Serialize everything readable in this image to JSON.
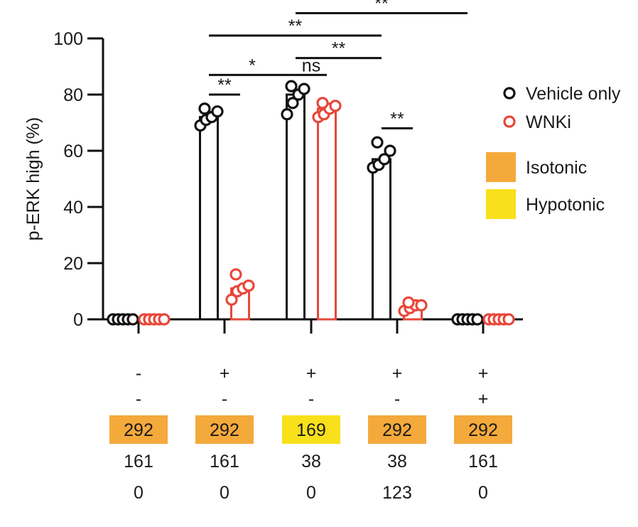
{
  "chart_data": {
    "type": "bar",
    "ylabel": "p-ERK high (%)",
    "ylim": [
      0,
      100
    ],
    "yticks": [
      0,
      20,
      40,
      60,
      80,
      100
    ],
    "groups": [
      "1",
      "2",
      "3",
      "4",
      "5"
    ],
    "series": [
      {
        "name": "Vehicle only",
        "color": "#111111",
        "means": [
          0,
          72,
          80,
          57,
          0
        ],
        "points": [
          [
            0,
            0,
            0,
            0,
            0
          ],
          [
            69,
            71,
            72,
            74,
            75
          ],
          [
            73,
            77,
            80,
            82,
            83
          ],
          [
            54,
            55,
            57,
            60,
            63
          ],
          [
            0,
            0,
            0,
            0,
            0
          ]
        ]
      },
      {
        "name": "WNKi",
        "color": "#e8473a",
        "means": [
          0,
          11,
          75,
          4,
          0
        ],
        "points": [
          [
            0,
            0,
            0,
            0,
            0
          ],
          [
            7,
            10,
            11,
            12,
            16
          ],
          [
            72,
            73,
            75,
            76,
            77
          ],
          [
            3,
            4,
            5,
            5,
            6
          ],
          [
            0,
            0,
            0,
            0,
            0
          ]
        ]
      }
    ],
    "significance": [
      {
        "group1": 1,
        "series1": 0,
        "group2": 1,
        "series2": 1,
        "label": "**",
        "y": 80
      },
      {
        "group1": 1,
        "series1": 0,
        "group2": 2,
        "series2": 0,
        "label": "*",
        "y": 87
      },
      {
        "group1": 2,
        "series1": 0,
        "group2": 2,
        "series2": 1,
        "label": "ns",
        "y": 87
      },
      {
        "group1": 2,
        "series1": 0,
        "group2": 3,
        "series2": 0,
        "label": "**",
        "y": 93
      },
      {
        "group1": 1,
        "series1": 0,
        "group2": 3,
        "series2": 0,
        "label": "**",
        "y": 101
      },
      {
        "group1": 2,
        "series1": 0,
        "group2": 4,
        "series2": 0,
        "label": "**",
        "y": 109
      },
      {
        "group1": 3,
        "series1": 0,
        "group2": 3,
        "series2": 1,
        "label": "**",
        "y": 68
      }
    ],
    "legend": {
      "placement": "right",
      "markers": [
        {
          "label": "Vehicle only",
          "color": "#111111"
        },
        {
          "label": "WNKi",
          "color": "#e8473a"
        }
      ],
      "swatches": [
        {
          "label": "Isotonic",
          "color": "#f4a93b"
        },
        {
          "label": "Hypotonic",
          "color": "#f8e01a"
        }
      ]
    },
    "condition_table": {
      "rows": [
        {
          "values": [
            "-",
            "+",
            "+",
            "+",
            "+"
          ]
        },
        {
          "values": [
            "-",
            "-",
            "-",
            "-",
            "+"
          ]
        },
        {
          "values": [
            "292",
            "292",
            "169",
            "292",
            "292"
          ],
          "boxed": true,
          "box_colors": [
            "#f4a93b",
            "#f4a93b",
            "#f8e01a",
            "#f4a93b",
            "#f4a93b"
          ]
        },
        {
          "values": [
            "161",
            "161",
            "38",
            "38",
            "161"
          ]
        },
        {
          "values": [
            "0",
            "0",
            "0",
            "123",
            "0"
          ]
        }
      ]
    }
  }
}
